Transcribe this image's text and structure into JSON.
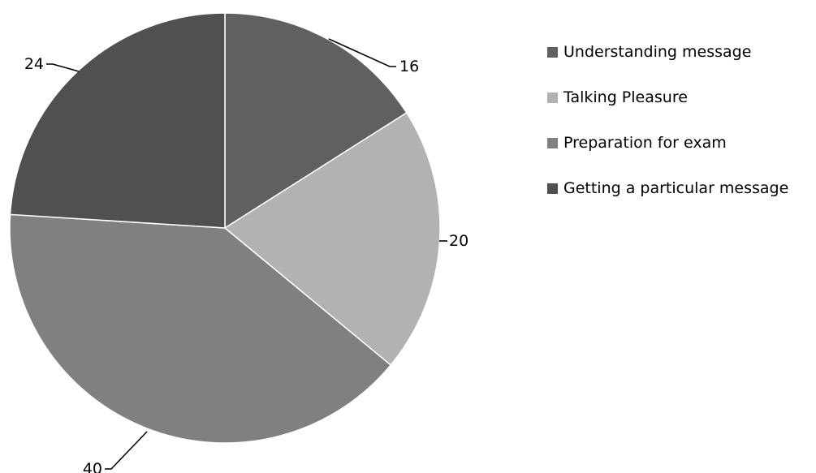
{
  "chart_data": {
    "type": "pie",
    "title": "",
    "slices": [
      {
        "label": "Understanding message",
        "value": 16,
        "color": "#606060"
      },
      {
        "label": "Talking Pleasure",
        "value": 20,
        "color": "#b2b2b2"
      },
      {
        "label": "Preparation for exam",
        "value": 40,
        "color": "#808080"
      },
      {
        "label": "Getting a particular message",
        "value": 24,
        "color": "#505050"
      }
    ],
    "data_labels": [
      "16",
      "20",
      "40",
      "24"
    ],
    "start_angle_deg": 0,
    "direction": "clockwise",
    "legend_position": "right"
  }
}
